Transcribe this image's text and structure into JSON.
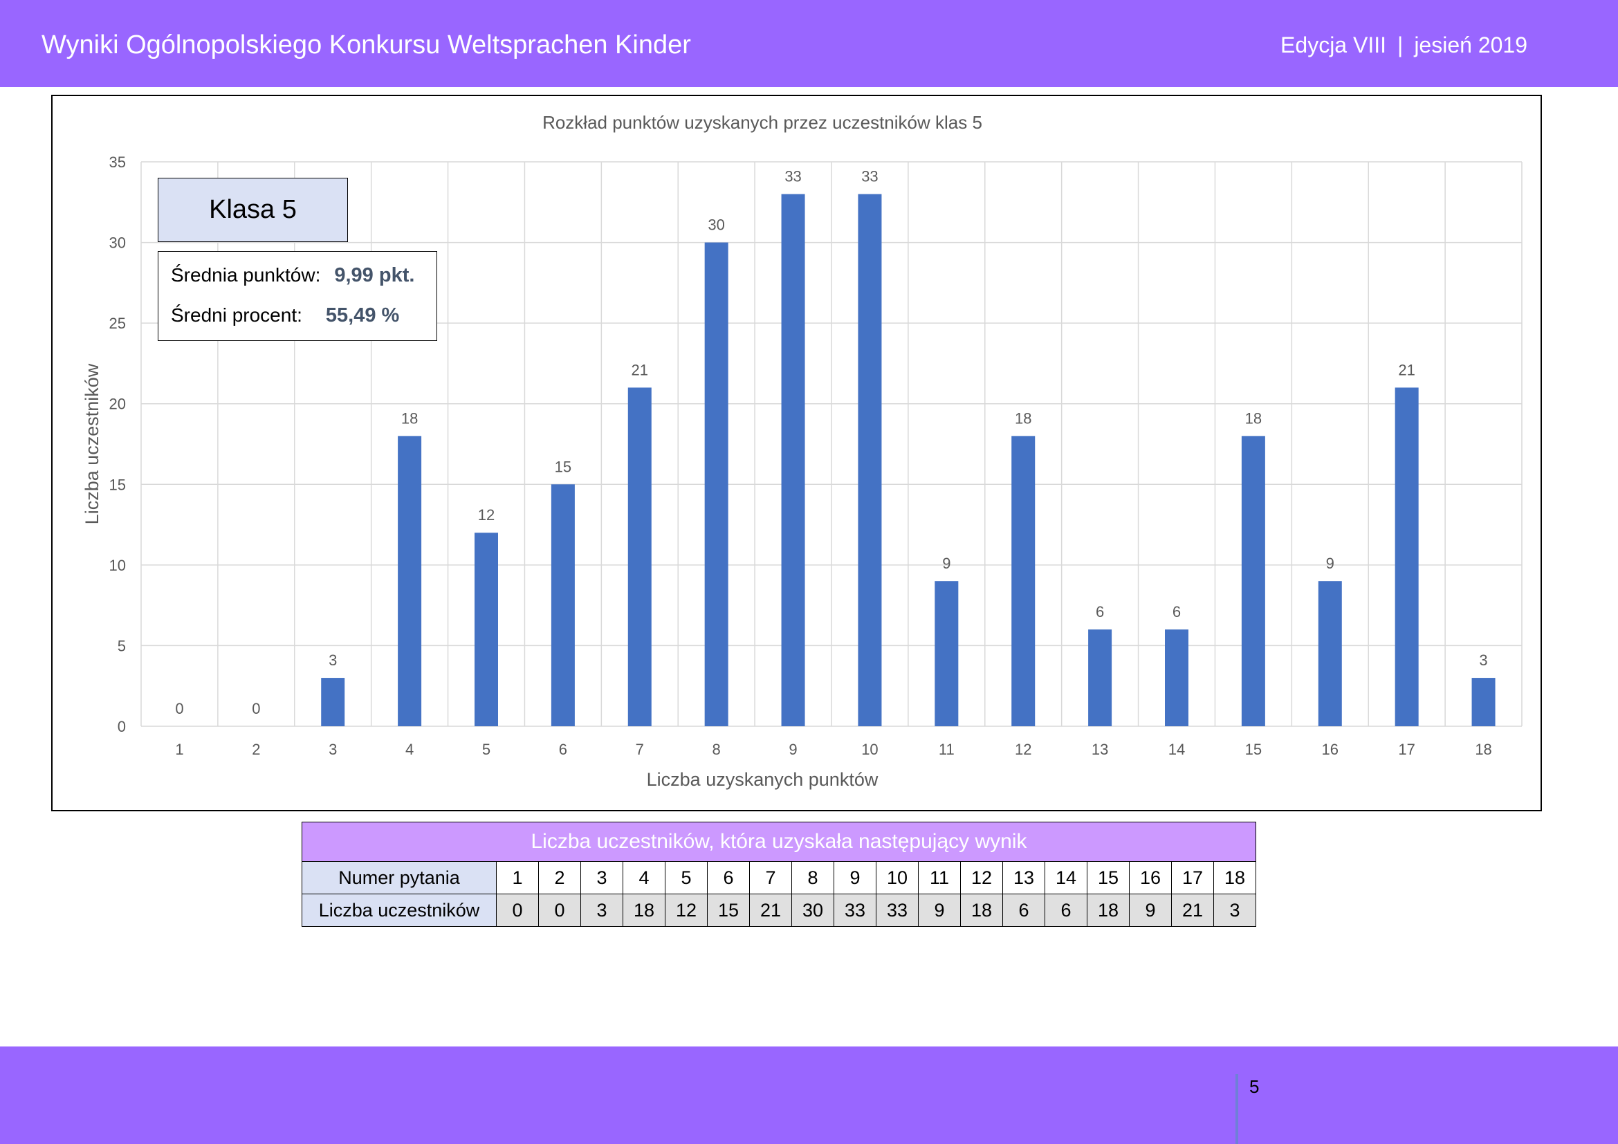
{
  "header": {
    "title": "Wyniki Ogólnopolskiego Konkursu Weltsprachen Kinder",
    "edition": "Edycja VIII",
    "separator": "|",
    "season": "jesień 2019"
  },
  "info": {
    "class_label": "Klasa 5",
    "avg_points_label": "Średnia punktów:",
    "avg_points_value": "9,99 pkt.",
    "avg_percent_label": "Średni procent:",
    "avg_percent_value": "55,49 %"
  },
  "chart_data": {
    "type": "bar",
    "title": "Rozkład punktów uzyskanych przez uczestników klas 5",
    "xlabel": "Liczba uzyskanych punktów",
    "ylabel": "Liczba uczestników",
    "categories": [
      "1",
      "2",
      "3",
      "4",
      "5",
      "6",
      "7",
      "8",
      "9",
      "10",
      "11",
      "12",
      "13",
      "14",
      "15",
      "16",
      "17",
      "18"
    ],
    "values": [
      0,
      0,
      3,
      18,
      12,
      15,
      21,
      30,
      33,
      33,
      9,
      18,
      6,
      6,
      18,
      9,
      21,
      3
    ],
    "ylim": [
      0,
      35
    ],
    "yticks": [
      0,
      5,
      10,
      15,
      20,
      25,
      30,
      35
    ],
    "grid": true,
    "data_labels": true,
    "bar_color": "#4472c4"
  },
  "table": {
    "caption": "Liczba uczestników, która uzyskała następujący wynik",
    "row1_head": "Numer pytania",
    "row2_head": "Liczba uczestników",
    "numbers": [
      "1",
      "2",
      "3",
      "4",
      "5",
      "6",
      "7",
      "8",
      "9",
      "10",
      "11",
      "12",
      "13",
      "14",
      "15",
      "16",
      "17",
      "18"
    ],
    "counts": [
      "0",
      "0",
      "3",
      "18",
      "12",
      "15",
      "21",
      "30",
      "33",
      "33",
      "9",
      "18",
      "6",
      "6",
      "18",
      "9",
      "21",
      "3"
    ]
  },
  "footer": {
    "page_number": "5"
  },
  "colors": {
    "brand": "#9966ff",
    "table_caption": "#cc99ff",
    "row_head": "#dae1f4",
    "count_cell": "#e0e0e0",
    "stat_value": "#44546a"
  }
}
